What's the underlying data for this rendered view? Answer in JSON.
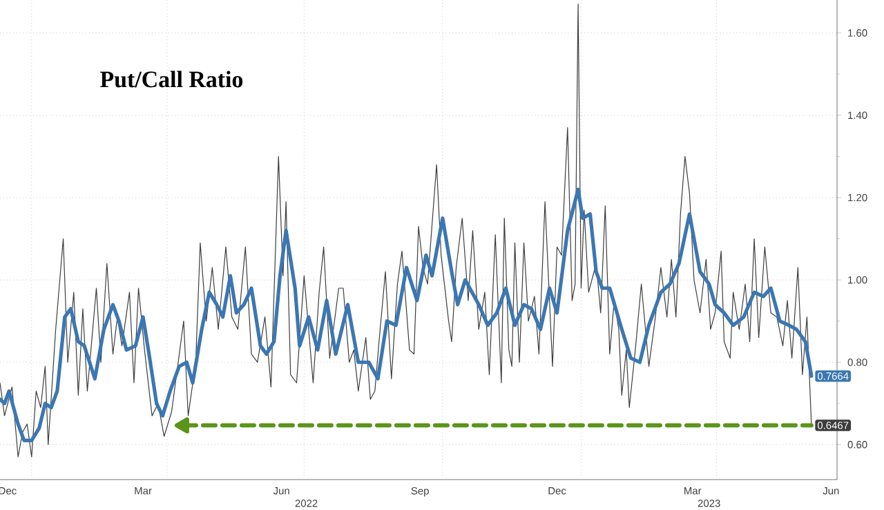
{
  "chart_data": {
    "type": "line",
    "title": "Put/Call Ratio",
    "xlim": [
      "2021-12-11",
      "2023-06-20"
    ],
    "ylim": [
      0.515,
      1.68
    ],
    "xticks": [
      {
        "value": "2021-12-16",
        "label": "Dec"
      },
      {
        "value": "2022-03-16",
        "label": "Mar"
      },
      {
        "value": "2022-06-16",
        "label": "Jun"
      },
      {
        "value": "2022-09-16",
        "label": "Sep"
      },
      {
        "value": "2022-12-16",
        "label": "Dec"
      },
      {
        "value": "2023-03-16",
        "label": "Mar"
      },
      {
        "value": "2023-06-16",
        "label": "Jun"
      },
      {
        "value": "2022-01-01",
        "label": null
      },
      {
        "value": "2022-04-01",
        "label": null
      },
      {
        "value": "2022-07-01",
        "label": null
      },
      {
        "value": "2022-10-01",
        "label": null
      },
      {
        "value": "2023-01-01",
        "label": null
      },
      {
        "value": "2023-04-01",
        "label": null
      }
    ],
    "yticks": [
      {
        "value": 0.6,
        "label": "0.60"
      },
      {
        "value": 0.8,
        "label": "0.80"
      },
      {
        "value": 1.0,
        "label": "1.00"
      },
      {
        "value": 1.2,
        "label": "1.20"
      },
      {
        "value": 1.4,
        "label": "1.40"
      },
      {
        "value": 1.6,
        "label": "1.60"
      }
    ],
    "grid": true,
    "series": [
      {
        "color": "#3c3c3c",
        "value_labels": [
          null,
          null,
          null,
          null,
          null,
          null,
          null,
          null,
          null,
          null,
          null,
          null,
          null,
          null,
          null,
          null,
          null,
          null,
          null,
          null,
          null,
          null,
          null,
          null,
          null,
          null,
          null,
          null,
          null,
          null,
          null,
          null,
          null,
          null,
          null,
          null,
          null,
          null,
          null,
          null,
          null,
          null,
          null,
          null,
          null,
          null,
          null,
          null,
          null,
          null,
          null,
          null,
          null,
          null,
          null,
          null,
          null,
          null,
          null,
          null,
          null,
          null,
          null,
          null,
          null,
          null,
          null,
          null,
          null,
          null,
          null,
          null,
          null,
          null,
          null,
          null,
          null,
          null,
          null,
          null,
          null,
          null,
          null,
          null,
          null,
          null,
          null,
          null,
          null,
          null,
          null,
          null,
          null,
          null,
          null,
          null,
          null,
          null,
          null,
          null,
          null,
          null,
          null,
          null,
          null,
          null,
          null,
          null,
          null,
          null,
          null,
          null,
          null,
          null,
          null,
          null,
          null,
          null,
          null,
          null,
          null,
          null,
          null,
          null,
          null,
          null,
          null,
          null,
          null,
          null,
          null,
          null,
          null,
          null,
          null,
          null,
          null,
          null,
          null,
          null,
          null,
          null,
          null,
          null,
          null,
          null,
          null,
          null,
          null,
          null,
          null,
          null,
          "0.6467"
        ],
        "x": [
          "2021-12-11",
          "2021-12-14",
          "2021-12-19",
          "2021-12-23",
          "2021-12-26",
          "2021-12-29",
          "2022-01-01",
          "2022-01-04",
          "2022-01-07",
          "2022-01-10",
          "2022-01-12",
          "2022-01-17",
          "2022-01-22",
          "2022-01-25",
          "2022-01-29",
          "2022-02-01",
          "2022-02-04",
          "2022-02-07",
          "2022-02-13",
          "2022-02-16",
          "2022-02-20",
          "2022-02-24",
          "2022-02-27",
          "2022-03-02",
          "2022-03-07",
          "2022-03-10",
          "2022-03-13",
          "2022-03-17",
          "2022-03-22",
          "2022-03-26",
          "2022-03-30",
          "2022-04-04",
          "2022-04-08",
          "2022-04-12",
          "2022-04-15",
          "2022-04-20",
          "2022-04-23",
          "2022-04-27",
          "2022-05-01",
          "2022-05-05",
          "2022-05-10",
          "2022-05-14",
          "2022-05-18",
          "2022-05-23",
          "2022-05-27",
          "2022-05-31",
          "2022-06-05",
          "2022-06-09",
          "2022-06-14",
          "2022-06-17",
          "2022-06-19",
          "2022-06-22",
          "2022-06-26",
          "2022-07-01",
          "2022-07-07",
          "2022-07-11",
          "2022-07-14",
          "2022-07-18",
          "2022-07-24",
          "2022-07-27",
          "2022-07-31",
          "2022-08-03",
          "2022-08-06",
          "2022-08-11",
          "2022-08-14",
          "2022-08-17",
          "2022-08-20",
          "2022-08-24",
          "2022-08-28",
          "2022-09-01",
          "2022-09-04",
          "2022-09-09",
          "2022-09-12",
          "2022-09-15",
          "2022-09-18",
          "2022-09-21",
          "2022-09-27",
          "2022-09-30",
          "2022-10-05",
          "2022-10-07",
          "2022-10-10",
          "2022-10-14",
          "2022-10-18",
          "2022-10-21",
          "2022-10-25",
          "2022-10-29",
          "2022-11-01",
          "2022-11-05",
          "2022-11-09",
          "2022-11-11",
          "2022-11-14",
          "2022-11-16",
          "2022-11-18",
          "2022-11-21",
          "2022-11-24",
          "2022-11-27",
          "2022-12-01",
          "2022-12-04",
          "2022-12-08",
          "2022-12-13",
          "2022-12-16",
          "2022-12-19",
          "2022-12-23",
          "2022-12-26",
          "2022-12-28",
          "2022-12-30",
          "2023-01-01",
          "2023-01-03",
          "2023-01-06",
          "2023-01-11",
          "2023-01-14",
          "2023-01-17",
          "2023-01-20",
          "2023-01-23",
          "2023-01-26",
          "2023-01-28",
          "2023-01-31",
          "2023-02-02",
          "2023-02-06",
          "2023-02-10",
          "2023-02-15",
          "2023-02-19",
          "2023-02-23",
          "2023-02-27",
          "2023-03-02",
          "2023-03-05",
          "2023-03-08",
          "2023-03-11",
          "2023-03-14",
          "2023-03-17",
          "2023-03-21",
          "2023-03-25",
          "2023-03-28",
          "2023-03-31",
          "2023-04-04",
          "2023-04-06",
          "2023-04-10",
          "2023-04-12",
          "2023-04-16",
          "2023-04-20",
          "2023-04-23",
          "2023-04-26",
          "2023-04-29",
          "2023-05-03",
          "2023-05-07",
          "2023-05-11",
          "2023-05-15",
          "2023-05-18",
          "2023-05-21",
          "2023-05-25",
          "2023-05-28",
          "2023-05-31",
          "2023-06-03"
        ],
        "values": [
          0.75,
          0.67,
          0.74,
          0.57,
          0.63,
          0.65,
          0.57,
          0.73,
          0.69,
          0.79,
          0.6,
          0.88,
          1.1,
          0.8,
          0.97,
          0.72,
          0.93,
          0.73,
          0.98,
          0.8,
          1.04,
          0.82,
          0.91,
          0.84,
          0.97,
          0.75,
          0.98,
          0.83,
          0.67,
          0.7,
          0.62,
          0.68,
          0.79,
          0.9,
          0.67,
          0.8,
          1.09,
          0.9,
          1.03,
          0.88,
          1.08,
          0.91,
          0.88,
          1.08,
          0.82,
          0.8,
          0.91,
          0.74,
          1.3,
          1.01,
          1.19,
          0.77,
          0.75,
          1.01,
          0.75,
          0.97,
          1.08,
          0.81,
          0.98,
          0.98,
          0.8,
          0.83,
          0.73,
          0.86,
          0.71,
          0.73,
          0.86,
          1.02,
          0.76,
          0.99,
          1.07,
          0.83,
          0.82,
          1.13,
          1.03,
          0.99,
          1.28,
          1.06,
          0.9,
          0.85,
          1.03,
          1.15,
          0.95,
          1.12,
          0.88,
          0.97,
          0.77,
          1.11,
          0.75,
          1.15,
          0.83,
          0.79,
          1.09,
          0.8,
          1.09,
          0.9,
          0.96,
          0.82,
          1.19,
          0.79,
          1.08,
          1.06,
          1.37,
          0.95,
          0.99,
          1.67,
          0.98,
          1.17,
          0.97,
          1.04,
          0.92,
          1.18,
          0.82,
          0.95,
          0.88,
          0.72,
          0.83,
          0.69,
          0.83,
          0.99,
          0.79,
          0.9,
          1.03,
          0.91,
          1.05,
          0.91,
          1.16,
          1.3,
          1.21,
          1.0,
          0.92,
          1.05,
          0.88,
          0.92,
          1.07,
          0.85,
          0.81,
          0.97,
          0.88,
          0.99,
          0.85,
          1.1,
          0.86,
          1.08,
          0.92,
          0.91,
          0.84,
          0.95,
          0.81,
          1.03,
          0.77,
          0.91,
          0.6467
        ]
      },
      {
        "color": "#3b77b2",
        "value_labels": [
          null,
          null,
          null,
          null,
          null,
          null,
          null,
          null,
          null,
          null,
          null,
          null,
          null,
          null,
          null,
          null,
          null,
          null,
          null,
          null,
          null,
          null,
          null,
          null,
          null,
          null,
          null,
          null,
          null,
          null,
          null,
          null,
          null,
          null,
          null,
          null,
          null,
          null,
          null,
          null,
          null,
          null,
          null,
          null,
          null,
          null,
          null,
          null,
          null,
          null,
          null,
          null,
          null,
          null,
          null,
          null,
          null,
          null,
          null,
          null,
          null,
          null,
          null,
          null,
          null,
          null,
          null,
          null,
          null,
          null,
          null,
          null,
          null,
          null,
          null,
          null,
          null,
          null,
          null,
          null,
          null,
          null,
          null,
          null,
          null,
          null,
          null,
          null,
          null,
          null,
          null,
          null,
          null,
          null,
          null,
          null,
          null,
          null,
          null,
          "0.7664"
        ],
        "x": [
          "2021-12-11",
          "2021-12-14",
          "2021-12-17",
          "2021-12-23",
          "2021-12-27",
          "2022-01-01",
          "2022-01-06",
          "2022-01-10",
          "2022-01-14",
          "2022-01-18",
          "2022-01-23",
          "2022-01-27",
          "2022-02-01",
          "2022-02-05",
          "2022-02-12",
          "2022-02-18",
          "2022-02-24",
          "2022-02-28",
          "2022-03-05",
          "2022-03-11",
          "2022-03-16",
          "2022-03-20",
          "2022-03-25",
          "2022-03-29",
          "2022-04-03",
          "2022-04-09",
          "2022-04-14",
          "2022-04-18",
          "2022-04-24",
          "2022-04-29",
          "2022-05-04",
          "2022-05-08",
          "2022-05-13",
          "2022-05-17",
          "2022-05-22",
          "2022-05-27",
          "2022-06-02",
          "2022-06-06",
          "2022-06-11",
          "2022-06-15",
          "2022-06-19",
          "2022-06-25",
          "2022-06-28",
          "2022-07-04",
          "2022-07-10",
          "2022-07-16",
          "2022-07-22",
          "2022-07-30",
          "2022-08-06",
          "2022-08-13",
          "2022-08-19",
          "2022-08-25",
          "2022-08-31",
          "2022-09-07",
          "2022-09-14",
          "2022-09-20",
          "2022-09-24",
          "2022-10-01",
          "2022-10-07",
          "2022-10-11",
          "2022-10-16",
          "2022-10-25",
          "2022-10-31",
          "2022-11-06",
          "2022-11-12",
          "2022-11-18",
          "2022-11-24",
          "2022-11-29",
          "2022-12-05",
          "2022-12-11",
          "2022-12-16",
          "2022-12-23",
          "2022-12-30",
          "2023-01-02",
          "2023-01-07",
          "2023-01-11",
          "2023-01-15",
          "2023-01-20",
          "2023-01-28",
          "2023-02-03",
          "2023-02-09",
          "2023-02-15",
          "2023-02-23",
          "2023-03-01",
          "2023-03-07",
          "2023-03-14",
          "2023-03-21",
          "2023-03-27",
          "2023-03-31",
          "2023-04-06",
          "2023-04-12",
          "2023-04-19",
          "2023-04-26",
          "2023-05-02",
          "2023-05-07",
          "2023-05-13",
          "2023-05-19",
          "2023-05-24",
          "2023-05-30",
          "2023-06-03"
        ],
        "values": [
          0.71,
          0.7,
          0.73,
          0.65,
          0.61,
          0.61,
          0.64,
          0.7,
          0.69,
          0.73,
          0.91,
          0.93,
          0.85,
          0.84,
          0.76,
          0.88,
          0.94,
          0.9,
          0.83,
          0.84,
          0.91,
          0.82,
          0.7,
          0.67,
          0.73,
          0.79,
          0.8,
          0.75,
          0.88,
          0.97,
          0.94,
          0.91,
          1.01,
          0.92,
          0.94,
          0.98,
          0.84,
          0.82,
          0.85,
          1.01,
          1.12,
          0.98,
          0.84,
          0.91,
          0.83,
          0.95,
          0.82,
          0.94,
          0.8,
          0.8,
          0.76,
          0.9,
          0.89,
          1.03,
          0.95,
          1.06,
          1.01,
          1.15,
          1.02,
          0.94,
          1.0,
          0.94,
          0.89,
          0.92,
          0.98,
          0.89,
          0.94,
          0.93,
          0.88,
          0.98,
          0.92,
          1.12,
          1.22,
          1.15,
          1.16,
          1.02,
          0.98,
          0.98,
          0.88,
          0.81,
          0.8,
          0.89,
          0.97,
          0.99,
          1.04,
          1.16,
          1.02,
          0.99,
          0.94,
          0.92,
          0.89,
          0.91,
          0.97,
          0.96,
          0.98,
          0.9,
          0.89,
          0.88,
          0.85,
          0.7664
        ]
      },
      {
        "type": "line",
        "color": "#5a9418",
        "line_style": "dashed",
        "x": [
          "2022-04-12",
          "2023-06-03"
        ],
        "values": [
          0.6467,
          0.6467
        ]
      }
    ],
    "annotations": [
      "2022",
      "2023"
    ]
  }
}
